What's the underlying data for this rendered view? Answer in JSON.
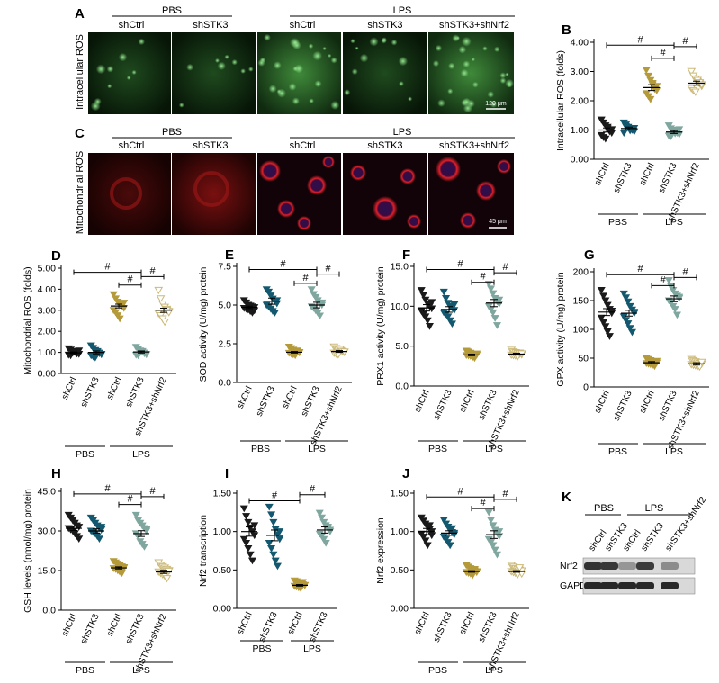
{
  "colors": {
    "shCtrl_pbs": "#1a1a1a",
    "shSTK3_pbs": "#13586e",
    "shCtrl_lps": "#b59a3a",
    "shSTK3_lps": "#7fa79f",
    "shSTK3_shNrf2_lps": "#cbb978",
    "green_panel": "#0d2a0d",
    "red_panel": "#2a0606"
  },
  "micrographs": {
    "panel_a": {
      "letter": "A",
      "ylabel": "Intracellular ROS",
      "group_pbs": "PBS",
      "group_lps": "LPS",
      "columns": [
        "shCtrl",
        "shSTK3",
        "shCtrl",
        "shSTK3",
        "shSTK3+shNrf2"
      ],
      "scalebar": "120 μm"
    },
    "panel_c": {
      "letter": "C",
      "ylabel": "Mitochondrial ROS",
      "group_pbs": "PBS",
      "group_lps": "LPS",
      "columns": [
        "shCtrl",
        "shSTK3",
        "shCtrl",
        "shSTK3",
        "shSTK3+shNrf2"
      ],
      "scalebar": "45 μm"
    }
  },
  "blot": {
    "letter": "K",
    "group_pbs": "PBS",
    "group_lps": "LPS",
    "lanes": [
      "shCtrl",
      "shSTK3",
      "shCtrl",
      "shSTK3",
      "shSTK3+shNrf2"
    ],
    "rows": [
      {
        "label": "Nrf2",
        "intensity": [
          0.85,
          0.82,
          0.35,
          0.8,
          0.4
        ]
      },
      {
        "label": "GAPDH",
        "intensity": [
          0.9,
          0.9,
          0.9,
          0.9,
          0.9
        ]
      }
    ]
  },
  "chart_data": [
    {
      "id": "B",
      "letter": "B",
      "type": "scatter",
      "ylabel": "Intracellular ROS (folds)",
      "ylim": [
        0,
        4
      ],
      "yticks": [
        "0.00",
        "1.00",
        "2.00",
        "3.00",
        "4.00"
      ],
      "categories": [
        "shCtrl",
        "shSTK3",
        "shCtrl",
        "shSTK3",
        "shSTK3+shNrf2"
      ],
      "groups": [
        {
          "label": "PBS",
          "span": [
            0,
            1
          ]
        },
        {
          "label": "LPS",
          "span": [
            2,
            4
          ]
        }
      ],
      "means": [
        1.0,
        1.05,
        2.45,
        0.93,
        2.6
      ],
      "sems": [
        0.07,
        0.05,
        0.1,
        0.05,
        0.07
      ],
      "points": [
        [
          1.35,
          1.25,
          1.15,
          1.05,
          0.98,
          0.9,
          0.82,
          0.75,
          0.7,
          1.1,
          0.95,
          1.02
        ],
        [
          1.25,
          1.18,
          1.1,
          1.05,
          1.0,
          0.95,
          0.9,
          1.12,
          1.08,
          0.98,
          1.02,
          1.06
        ],
        [
          3.05,
          2.85,
          2.7,
          2.55,
          2.45,
          2.35,
          2.25,
          2.15,
          2.05,
          2.6,
          2.4,
          2.5
        ],
        [
          1.15,
          1.05,
          1.0,
          0.95,
          0.9,
          0.85,
          0.8,
          0.78,
          0.92,
          0.88,
          0.98,
          1.02
        ],
        [
          3.0,
          2.85,
          2.75,
          2.65,
          2.58,
          2.5,
          2.42,
          2.35,
          2.3,
          2.7,
          2.62,
          2.55
        ]
      ],
      "brackets": [
        {
          "from": 0,
          "to": 3,
          "level": 3.9,
          "label": "#"
        },
        {
          "from": 2,
          "to": 3,
          "level": 3.45,
          "label": "#"
        },
        {
          "from": 3,
          "to": 4,
          "level": 3.85,
          "label": "#"
        }
      ]
    },
    {
      "id": "D",
      "letter": "D",
      "type": "scatter",
      "ylabel": "Mitochondrial ROS (folds)",
      "ylim": [
        0,
        5
      ],
      "yticks": [
        "0.00",
        "1.00",
        "2.00",
        "3.00",
        "4.00",
        "5.00"
      ],
      "categories": [
        "shCtrl",
        "shSTK3",
        "shCtrl",
        "shSTK3",
        "shSTK3+shNrf2"
      ],
      "groups": [
        {
          "label": "PBS",
          "span": [
            0,
            1
          ]
        },
        {
          "label": "LPS",
          "span": [
            2,
            4
          ]
        }
      ],
      "means": [
        0.98,
        1.0,
        3.2,
        1.02,
        3.0
      ],
      "sems": [
        0.04,
        0.07,
        0.09,
        0.05,
        0.1
      ],
      "points": [
        [
          1.18,
          1.12,
          1.05,
          1.0,
          0.96,
          0.92,
          0.88,
          0.85,
          0.98,
          1.02,
          0.94,
          1.08
        ],
        [
          1.32,
          1.2,
          1.1,
          1.02,
          0.95,
          0.9,
          0.85,
          0.8,
          0.75,
          1.05,
          0.98,
          0.92
        ],
        [
          3.75,
          3.55,
          3.4,
          3.3,
          3.2,
          3.1,
          3.0,
          2.9,
          2.75,
          2.6,
          3.25,
          3.35
        ],
        [
          1.25,
          1.15,
          1.08,
          1.02,
          0.98,
          0.92,
          0.88,
          0.85,
          1.0,
          1.05,
          0.95,
          0.9
        ],
        [
          3.95,
          3.55,
          3.3,
          3.15,
          3.05,
          2.95,
          2.85,
          2.75,
          2.6,
          2.45,
          3.0,
          2.9
        ]
      ],
      "brackets": [
        {
          "from": 0,
          "to": 3,
          "level": 4.8,
          "label": "#"
        },
        {
          "from": 2,
          "to": 3,
          "level": 4.2,
          "label": "#"
        },
        {
          "from": 3,
          "to": 4,
          "level": 4.6,
          "label": "#"
        }
      ]
    },
    {
      "id": "E",
      "letter": "E",
      "type": "scatter",
      "ylabel": "SOD activity (U/mg) protein",
      "ylim": [
        0,
        7.5
      ],
      "yticks": [
        "0.0",
        "2.5",
        "5.0",
        "7.5"
      ],
      "categories": [
        "shCtrl",
        "shSTK3",
        "shCtrl",
        "shSTK3",
        "shSTK3+shNrf2"
      ],
      "groups": [
        {
          "label": "PBS",
          "span": [
            0,
            1
          ]
        },
        {
          "label": "LPS",
          "span": [
            2,
            4
          ]
        }
      ],
      "means": [
        4.85,
        5.25,
        1.95,
        5.0,
        2.0
      ],
      "sems": [
        0.08,
        0.2,
        0.05,
        0.18,
        0.06
      ],
      "points": [
        [
          5.3,
          5.15,
          5.0,
          4.95,
          4.9,
          4.85,
          4.8,
          4.75,
          4.7,
          4.6,
          4.5,
          4.65
        ],
        [
          6.0,
          5.85,
          5.6,
          5.4,
          5.25,
          5.1,
          5.0,
          4.9,
          4.75,
          4.6,
          4.5,
          5.3
        ],
        [
          2.3,
          2.2,
          2.1,
          2.0,
          1.98,
          1.95,
          1.9,
          1.85,
          1.8,
          1.75,
          2.05,
          1.92
        ],
        [
          6.0,
          5.7,
          5.5,
          5.3,
          5.1,
          5.0,
          4.9,
          4.8,
          4.65,
          4.5,
          4.3,
          5.15
        ],
        [
          2.3,
          2.2,
          2.1,
          2.05,
          2.0,
          1.95,
          1.9,
          1.85,
          1.8,
          2.15,
          2.02,
          1.98
        ]
      ],
      "brackets": [
        {
          "from": 0,
          "to": 3,
          "level": 7.3,
          "label": "#"
        },
        {
          "from": 2,
          "to": 3,
          "level": 6.4,
          "label": "#"
        },
        {
          "from": 3,
          "to": 4,
          "level": 7.0,
          "label": "#"
        }
      ]
    },
    {
      "id": "F",
      "letter": "F",
      "type": "scatter",
      "ylabel": "PRX1 activity (U/mg) protein",
      "ylim": [
        0,
        15
      ],
      "yticks": [
        "0.0",
        "5.0",
        "10.0",
        "15.0"
      ],
      "categories": [
        "shCtrl",
        "shSTK3",
        "shCtrl",
        "shSTK3",
        "shSTK3+shNrf2"
      ],
      "groups": [
        {
          "label": "PBS",
          "span": [
            0,
            1
          ]
        },
        {
          "label": "LPS",
          "span": [
            2,
            4
          ]
        }
      ],
      "means": [
        9.8,
        9.6,
        3.9,
        10.4,
        4.0
      ],
      "sems": [
        0.4,
        0.35,
        0.1,
        0.45,
        0.12
      ],
      "points": [
        [
          12.0,
          11.4,
          10.8,
          10.3,
          10.0,
          9.7,
          9.4,
          9.0,
          8.7,
          8.2,
          7.5,
          10.5
        ],
        [
          11.8,
          11.0,
          10.4,
          10.0,
          9.8,
          9.5,
          9.2,
          9.0,
          8.7,
          8.2,
          7.8,
          10.2
        ],
        [
          4.4,
          4.3,
          4.15,
          4.0,
          3.95,
          3.9,
          3.85,
          3.8,
          3.75,
          3.6,
          3.5,
          4.05
        ],
        [
          12.8,
          12.2,
          11.6,
          11.0,
          10.6,
          10.3,
          10.0,
          9.6,
          9.2,
          8.5,
          7.6,
          10.8
        ],
        [
          4.5,
          4.3,
          4.2,
          4.1,
          4.0,
          3.95,
          3.9,
          3.85,
          3.8,
          3.7,
          4.15,
          4.05
        ]
      ],
      "brackets": [
        {
          "from": 0,
          "to": 3,
          "level": 14.6,
          "label": "#"
        },
        {
          "from": 2,
          "to": 3,
          "level": 13.0,
          "label": "#"
        },
        {
          "from": 3,
          "to": 4,
          "level": 14.2,
          "label": "#"
        }
      ]
    },
    {
      "id": "G",
      "letter": "G",
      "type": "scatter",
      "ylabel": "GPX activity (U/mg) protein",
      "ylim": [
        0,
        200
      ],
      "yticks": [
        "0",
        "50",
        "100",
        "150",
        "200"
      ],
      "categories": [
        "shCtrl",
        "shSTK3",
        "shCtrl",
        "shSTK3",
        "shSTK3+shNrf2"
      ],
      "groups": [
        {
          "label": "PBS",
          "span": [
            0,
            1
          ]
        },
        {
          "label": "LPS",
          "span": [
            2,
            4
          ]
        }
      ],
      "means": [
        130,
        128,
        42,
        153,
        40
      ],
      "sems": [
        6,
        5,
        2,
        5,
        2
      ],
      "points": [
        [
          168,
          158,
          150,
          142,
          135,
          128,
          120,
          112,
          105,
          96,
          88,
          132
        ],
        [
          162,
          155,
          148,
          140,
          134,
          128,
          122,
          116,
          110,
          102,
          95,
          130
        ],
        [
          50,
          48,
          46,
          44,
          43,
          42,
          41,
          40,
          39,
          38,
          36,
          45
        ],
        [
          185,
          175,
          168,
          162,
          158,
          154,
          150,
          146,
          140,
          135,
          125,
          156
        ],
        [
          48,
          46,
          44,
          42,
          41,
          40,
          39,
          38,
          37,
          36,
          35,
          43
        ]
      ],
      "brackets": [
        {
          "from": 0,
          "to": 3,
          "level": 195,
          "label": "#"
        },
        {
          "from": 2,
          "to": 3,
          "level": 176,
          "label": "#"
        },
        {
          "from": 3,
          "to": 4,
          "level": 190,
          "label": "#"
        }
      ]
    },
    {
      "id": "H",
      "letter": "H",
      "type": "scatter",
      "ylabel": "GSH levels (nmol/mg) protein",
      "ylim": [
        0,
        45
      ],
      "yticks": [
        "0.0",
        "15.0",
        "30.0",
        "45.0"
      ],
      "categories": [
        "shCtrl",
        "shSTK3",
        "shCtrl",
        "shSTK3",
        "shSTK3+shNrf2"
      ],
      "groups": [
        {
          "label": "PBS",
          "span": [
            0,
            1
          ]
        },
        {
          "label": "LPS",
          "span": [
            2,
            4
          ]
        }
      ],
      "means": [
        31,
        30,
        16,
        29,
        14.5
      ],
      "sems": [
        0.8,
        0.8,
        0.4,
        1.1,
        0.6
      ],
      "points": [
        [
          36,
          35,
          34,
          33,
          32,
          31.5,
          31,
          30.5,
          30,
          29,
          28,
          27
        ],
        [
          35,
          34,
          33,
          32,
          31,
          30.5,
          30,
          29.5,
          29,
          28,
          27,
          31.5
        ],
        [
          18.5,
          18,
          17.5,
          17,
          16.5,
          16,
          15.8,
          15.5,
          15,
          14.5,
          14,
          16.2
        ],
        [
          36,
          34,
          33,
          32,
          31,
          30,
          29,
          28,
          26,
          25,
          24,
          30.5
        ],
        [
          18,
          17,
          16.5,
          16,
          15.5,
          15,
          14.5,
          14,
          13.5,
          13,
          12,
          14.8
        ]
      ],
      "brackets": [
        {
          "from": 0,
          "to": 3,
          "level": 44,
          "label": "#"
        },
        {
          "from": 2,
          "to": 3,
          "level": 40,
          "label": "#"
        },
        {
          "from": 3,
          "to": 4,
          "level": 43,
          "label": "#"
        }
      ]
    },
    {
      "id": "I",
      "letter": "I",
      "type": "scatter",
      "ylabel": "Nrf2 transcription",
      "ylim": [
        0,
        1.5
      ],
      "yticks": [
        "0.00",
        "0.50",
        "1.00",
        "1.50"
      ],
      "categories": [
        "shCtrl",
        "shSTK3",
        "shCtrl",
        "shSTK3"
      ],
      "groups": [
        {
          "label": "PBS",
          "span": [
            0,
            1
          ]
        },
        {
          "label": "LPS",
          "span": [
            2,
            3
          ]
        }
      ],
      "means": [
        1.0,
        0.95,
        0.3,
        1.02
      ],
      "sems": [
        0.06,
        0.07,
        0.01,
        0.04
      ],
      "points": [
        [
          1.3,
          1.2,
          1.12,
          1.05,
          1.0,
          0.95,
          0.9,
          0.85,
          0.78,
          0.7,
          0.62,
          1.08
        ],
        [
          1.32,
          1.22,
          1.12,
          1.03,
          0.96,
          0.9,
          0.85,
          0.78,
          0.7,
          0.62,
          0.55,
          1.0
        ],
        [
          0.36,
          0.35,
          0.33,
          0.32,
          0.31,
          0.3,
          0.29,
          0.28,
          0.27,
          0.26,
          0.34,
          0.3
        ],
        [
          1.24,
          1.18,
          1.12,
          1.08,
          1.04,
          1.0,
          0.97,
          0.94,
          0.9,
          0.85,
          1.06,
          1.02
        ]
      ],
      "brackets": [
        {
          "from": 0,
          "to": 2,
          "level": 1.4,
          "label": "#"
        },
        {
          "from": 2,
          "to": 3,
          "level": 1.48,
          "label": "#"
        }
      ]
    },
    {
      "id": "J",
      "letter": "J",
      "type": "scatter",
      "ylabel": "Nrf2 expression",
      "ylim": [
        0,
        1.5
      ],
      "yticks": [
        "0.00",
        "0.50",
        "1.00",
        "1.50"
      ],
      "categories": [
        "shCtrl",
        "shSTK3",
        "shCtrl",
        "shSTK3",
        "shSTK3+shNrf2"
      ],
      "groups": [
        {
          "label": "PBS",
          "span": [
            0,
            1
          ]
        },
        {
          "label": "LPS",
          "span": [
            2,
            4
          ]
        }
      ],
      "means": [
        1.0,
        0.98,
        0.48,
        0.96,
        0.48
      ],
      "sems": [
        0.04,
        0.03,
        0.01,
        0.05,
        0.01
      ],
      "points": [
        [
          1.18,
          1.14,
          1.1,
          1.06,
          1.03,
          1.0,
          0.97,
          0.93,
          0.88,
          0.82,
          1.08,
          0.95
        ],
        [
          1.15,
          1.1,
          1.06,
          1.02,
          0.99,
          0.96,
          0.93,
          0.9,
          0.86,
          0.82,
          1.04,
          0.98
        ],
        [
          0.56,
          0.54,
          0.52,
          0.5,
          0.49,
          0.48,
          0.47,
          0.46,
          0.45,
          0.43,
          0.51,
          0.47
        ],
        [
          1.25,
          1.15,
          1.08,
          1.02,
          0.98,
          0.94,
          0.9,
          0.86,
          0.82,
          0.76,
          0.7,
          1.0
        ],
        [
          0.56,
          0.54,
          0.52,
          0.51,
          0.5,
          0.49,
          0.48,
          0.47,
          0.46,
          0.44,
          0.53,
          0.45
        ]
      ],
      "brackets": [
        {
          "from": 0,
          "to": 3,
          "level": 1.45,
          "label": "#"
        },
        {
          "from": 2,
          "to": 3,
          "level": 1.3,
          "label": "#"
        },
        {
          "from": 3,
          "to": 4,
          "level": 1.42,
          "label": "#"
        }
      ]
    }
  ]
}
